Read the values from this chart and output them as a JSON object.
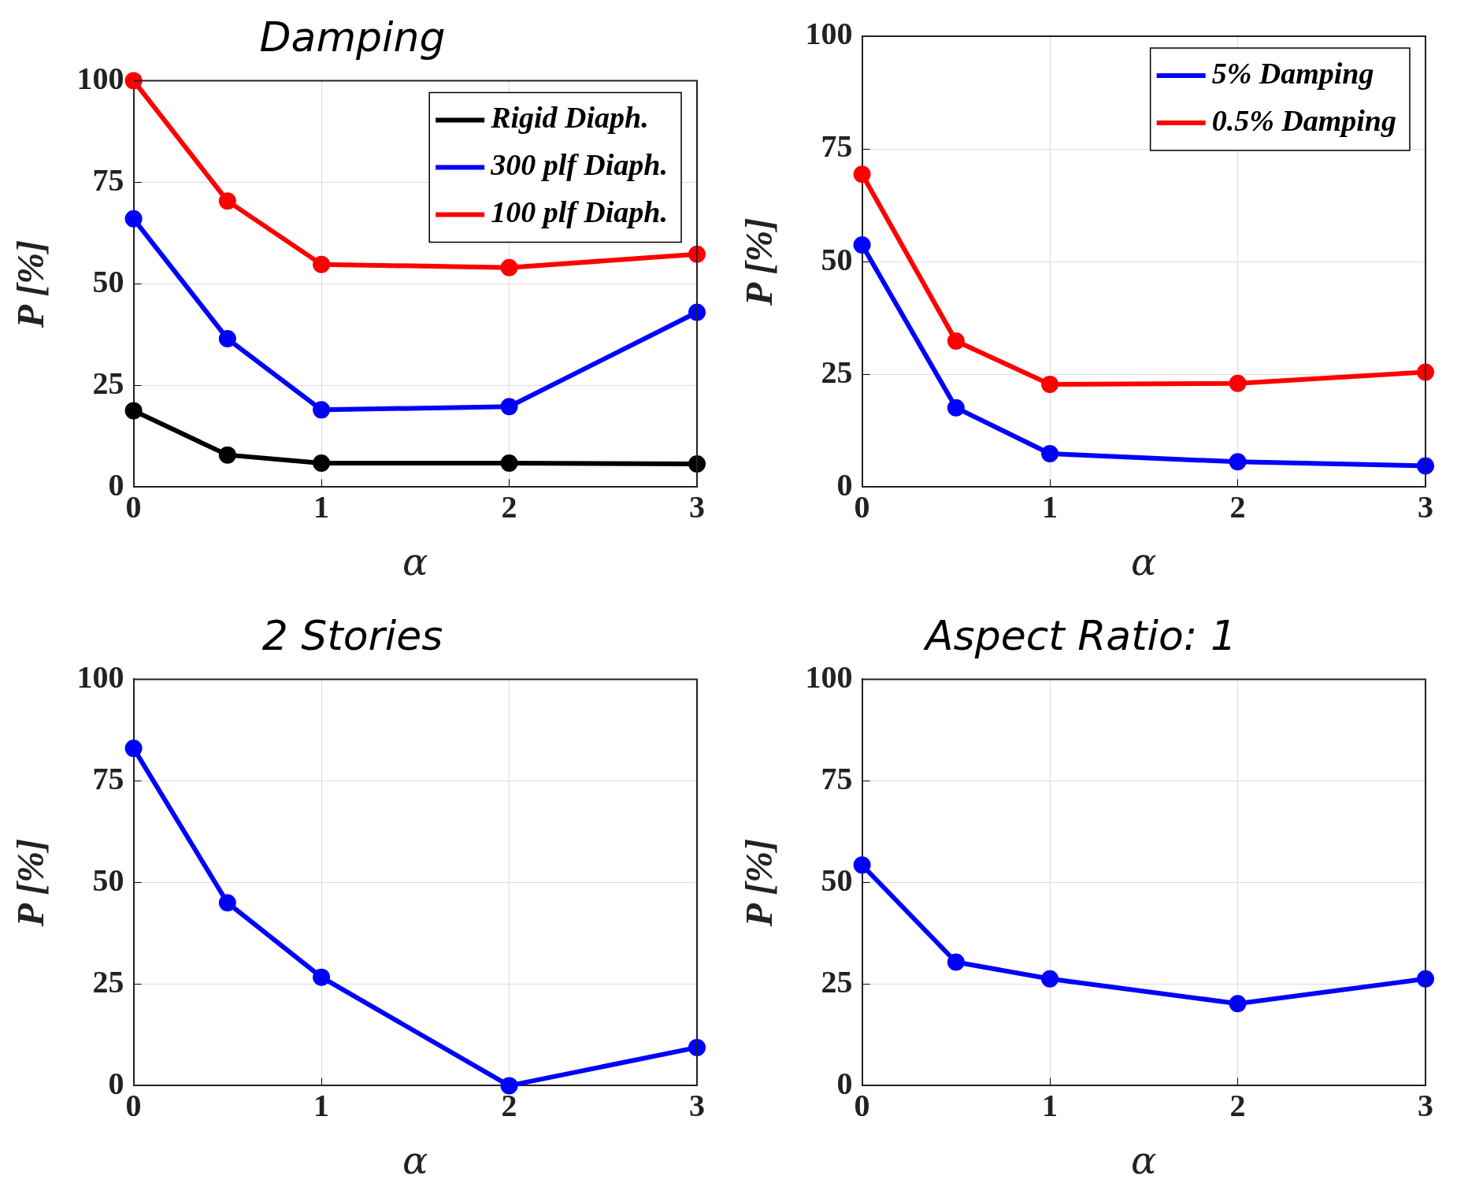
{
  "chart_data": [
    {
      "type": "line",
      "title": "Damping",
      "xlabel": "α",
      "ylabel": "P [%]",
      "x": [
        0,
        0.5,
        1,
        2,
        3
      ],
      "xlim": [
        0,
        3
      ],
      "xticks": [
        0,
        1,
        2,
        3
      ],
      "ylim": [
        0,
        100
      ],
      "yticks": [
        0,
        25,
        50,
        75,
        100
      ],
      "grid": true,
      "legend": "top right",
      "marker": "circle",
      "line_style": "solid",
      "series": [
        {
          "name": "Rigid Diaph.",
          "color": "#000000",
          "values": [
            18.8,
            7.9,
            5.9,
            5.9,
            5.7
          ]
        },
        {
          "name": "300 plf Diaph.",
          "color": "#0000ff",
          "values": [
            66,
            36.5,
            19,
            19.8,
            43
          ]
        },
        {
          "name": "100 plf Diaph.",
          "color": "#ff0000",
          "values": [
            100,
            70.4,
            54.8,
            54,
            57.3
          ]
        }
      ]
    },
    {
      "type": "line",
      "xlabel": "α",
      "ylabel": "P [%]",
      "x": [
        0,
        0.5,
        1,
        2,
        3
      ],
      "xlim": [
        0,
        3
      ],
      "xticks": [
        0,
        1,
        2,
        3
      ],
      "ylim": [
        0,
        100
      ],
      "yticks": [
        0,
        25,
        50,
        75,
        100
      ],
      "grid": true,
      "legend": "top right",
      "marker": "circle",
      "line_style": "solid",
      "series": [
        {
          "name": "5% Damping",
          "color": "#0000ff",
          "values": [
            53.7,
            17.6,
            7.4,
            5.6,
            4.7
          ]
        },
        {
          "name": "0.5% Damping",
          "color": "#ff0000",
          "values": [
            69.4,
            32.4,
            22.8,
            23,
            25.5
          ]
        }
      ]
    },
    {
      "type": "line",
      "title": "2 Stories",
      "xlabel": "α",
      "ylabel": "P [%]",
      "x": [
        0,
        0.5,
        1,
        2,
        3
      ],
      "xlim": [
        0,
        3
      ],
      "xticks": [
        0,
        1,
        2,
        3
      ],
      "ylim": [
        0,
        100
      ],
      "yticks": [
        0,
        25,
        50,
        75,
        100
      ],
      "grid": true,
      "marker": "circle",
      "line_style": "solid",
      "series": [
        {
          "color": "#0000ff",
          "values": [
            83,
            45,
            26.7,
            0,
            9.4
          ]
        }
      ]
    },
    {
      "type": "line",
      "title": "Aspect Ratio: 1",
      "xlabel": "α",
      "ylabel": "P [%]",
      "x": [
        0,
        0.5,
        1,
        2,
        3
      ],
      "xlim": [
        0,
        3
      ],
      "xticks": [
        0,
        1,
        2,
        3
      ],
      "ylim": [
        0,
        100
      ],
      "yticks": [
        0,
        25,
        50,
        75,
        100
      ],
      "grid": true,
      "marker": "circle",
      "line_style": "solid",
      "series": [
        {
          "color": "#0000ff",
          "values": [
            54.3,
            30.4,
            26.3,
            20.2,
            26.3
          ]
        }
      ]
    }
  ]
}
